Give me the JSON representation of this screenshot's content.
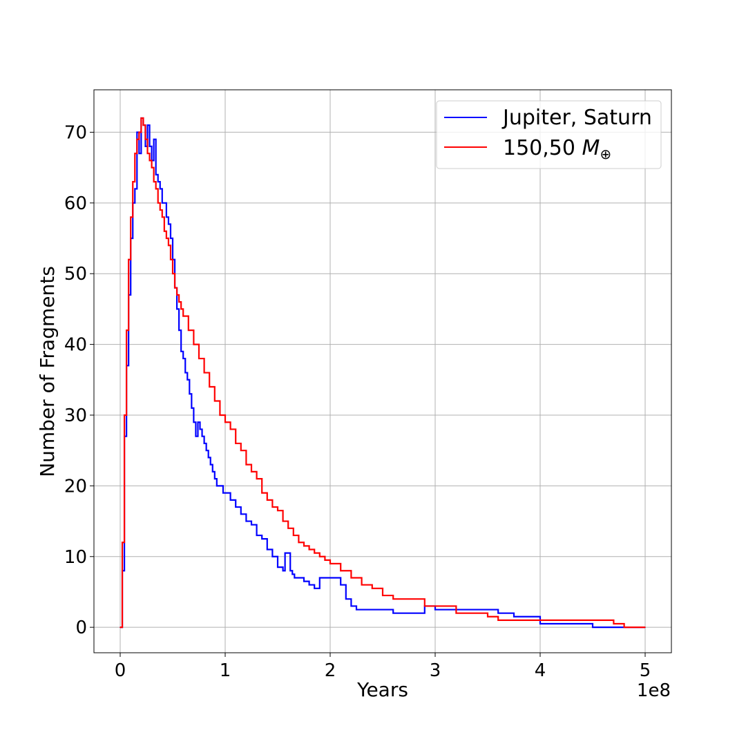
{
  "chart_data": {
    "type": "line",
    "title": "",
    "xlabel": "Years",
    "ylabel": "Number of Fragments",
    "x_offset_label": "1e8",
    "x_scale": 100000000,
    "xlim": [
      -0.25,
      5.25
    ],
    "ylim": [
      -3.6,
      76.0
    ],
    "x_ticks": [
      0,
      1,
      2,
      3,
      4,
      5
    ],
    "x_tick_labels": [
      "0",
      "1",
      "2",
      "3",
      "4",
      "5"
    ],
    "y_ticks": [
      0,
      10,
      20,
      30,
      40,
      50,
      60,
      70
    ],
    "y_tick_labels": [
      "0",
      "10",
      "20",
      "30",
      "40",
      "50",
      "60",
      "70"
    ],
    "grid": true,
    "legend_position": "top-right",
    "series": [
      {
        "name": "Jupiter, Saturn",
        "legend_label": "Jupiter, Saturn",
        "color": "#0000ff",
        "x": [
          0.0,
          0.02,
          0.04,
          0.06,
          0.08,
          0.1,
          0.12,
          0.14,
          0.16,
          0.18,
          0.2,
          0.22,
          0.24,
          0.26,
          0.28,
          0.3,
          0.32,
          0.34,
          0.36,
          0.38,
          0.4,
          0.42,
          0.44,
          0.46,
          0.48,
          0.5,
          0.52,
          0.54,
          0.56,
          0.58,
          0.6,
          0.62,
          0.64,
          0.66,
          0.68,
          0.7,
          0.72,
          0.74,
          0.76,
          0.78,
          0.8,
          0.82,
          0.84,
          0.86,
          0.88,
          0.9,
          0.92,
          0.94,
          0.96,
          0.98,
          1.0,
          1.05,
          1.1,
          1.15,
          1.2,
          1.25,
          1.3,
          1.35,
          1.4,
          1.45,
          1.5,
          1.55,
          1.57,
          1.6,
          1.62,
          1.64,
          1.66,
          1.7,
          1.75,
          1.8,
          1.85,
          1.9,
          1.95,
          2.0,
          2.05,
          2.1,
          2.15,
          2.2,
          2.25,
          2.4,
          2.6,
          2.8,
          2.9,
          3.0,
          3.2,
          3.4,
          3.6,
          3.75,
          3.9,
          4.0,
          4.5,
          4.8,
          5.0
        ],
        "values": [
          0,
          8,
          27,
          37,
          47,
          55,
          60,
          62,
          70,
          67,
          72,
          71,
          68,
          71,
          68,
          66,
          69,
          64,
          63,
          62,
          60,
          60,
          58,
          57,
          55,
          52,
          48,
          45,
          42,
          39,
          38,
          36,
          35,
          33,
          31,
          29,
          27,
          29,
          28,
          27,
          26,
          25,
          24,
          23,
          22,
          21,
          20,
          20,
          20,
          19,
          19,
          18,
          17,
          16,
          15,
          14.5,
          13,
          12.5,
          11,
          10,
          8.5,
          8,
          10.5,
          10.5,
          8,
          7.5,
          7,
          7,
          6.5,
          6,
          5.5,
          7,
          7,
          7,
          7,
          6,
          4,
          3,
          2.5,
          2.5,
          2,
          2,
          3,
          2.5,
          2.5,
          2.5,
          2,
          1.5,
          1.5,
          0.5,
          0,
          0,
          0
        ]
      },
      {
        "name": "150,50 M⊕",
        "legend_label_main": "150,50 ",
        "legend_label_symbol": "M",
        "legend_label_subscript": "⊕",
        "color": "#ff0000",
        "x": [
          0.0,
          0.02,
          0.04,
          0.06,
          0.08,
          0.1,
          0.12,
          0.14,
          0.16,
          0.18,
          0.2,
          0.22,
          0.24,
          0.26,
          0.28,
          0.3,
          0.32,
          0.34,
          0.36,
          0.38,
          0.4,
          0.42,
          0.44,
          0.46,
          0.48,
          0.5,
          0.52,
          0.54,
          0.56,
          0.58,
          0.6,
          0.65,
          0.7,
          0.75,
          0.8,
          0.85,
          0.9,
          0.95,
          1.0,
          1.05,
          1.1,
          1.15,
          1.2,
          1.25,
          1.3,
          1.35,
          1.4,
          1.45,
          1.5,
          1.55,
          1.6,
          1.65,
          1.7,
          1.75,
          1.8,
          1.85,
          1.9,
          1.95,
          2.0,
          2.1,
          2.2,
          2.3,
          2.4,
          2.5,
          2.6,
          2.7,
          2.8,
          2.9,
          3.0,
          3.2,
          3.4,
          3.5,
          3.6,
          3.8,
          4.0,
          4.3,
          4.6,
          4.7,
          4.8,
          5.0
        ],
        "values": [
          0,
          12,
          30,
          42,
          52,
          58,
          63,
          67,
          69,
          70,
          72,
          71,
          69,
          67,
          66,
          65,
          63,
          62,
          60,
          59,
          58,
          56,
          55,
          54,
          52,
          50,
          48,
          47,
          46,
          45,
          44,
          42,
          40,
          38,
          36,
          34,
          32,
          30,
          29,
          28,
          26,
          25,
          23,
          22,
          21,
          19,
          18,
          17,
          16.5,
          15,
          14,
          13,
          12,
          11.5,
          11,
          10.5,
          10,
          9.5,
          9,
          8,
          7,
          6,
          5.5,
          4.5,
          4,
          4,
          4,
          3,
          3,
          2,
          2,
          1.5,
          1,
          1,
          1,
          1,
          1,
          0.5,
          0,
          0
        ]
      }
    ]
  }
}
